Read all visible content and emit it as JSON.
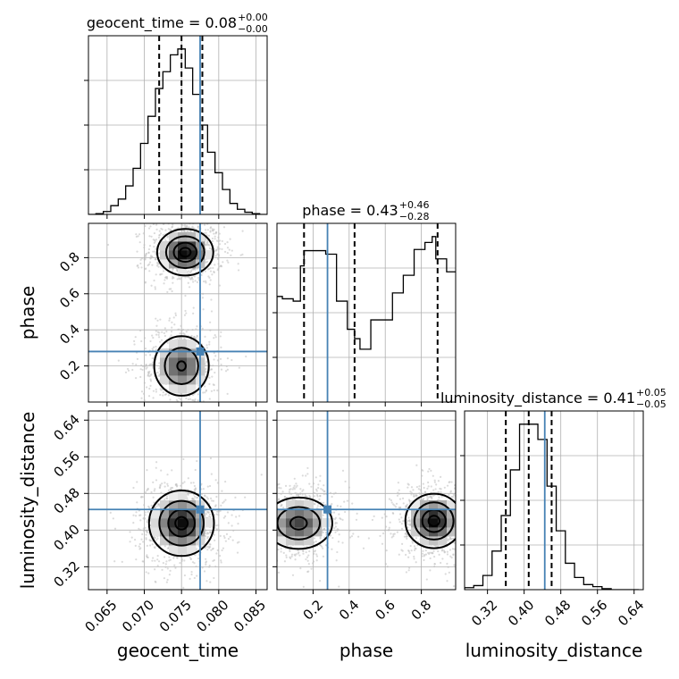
{
  "chart_data": {
    "type": "corner",
    "parameters": [
      "geocent_time",
      "phase",
      "luminosity_distance"
    ],
    "truths": {
      "geocent_time": 0.0775,
      "phase": 0.28,
      "luminosity_distance": 0.445
    },
    "ranges": {
      "geocent_time": [
        0.0625,
        0.0865
      ],
      "phase": [
        0.0,
        0.99
      ],
      "luminosity_distance": [
        0.27,
        0.66
      ]
    },
    "ticks": {
      "geocent_time": [
        0.065,
        0.07,
        0.075,
        0.08,
        0.085
      ],
      "phase": [
        0.2,
        0.4,
        0.6,
        0.8
      ],
      "luminosity_distance": [
        0.32,
        0.4,
        0.48,
        0.56,
        0.64
      ]
    },
    "tick_labels": {
      "geocent_time": [
        "0.065",
        "0.070",
        "0.075",
        "0.080",
        "0.085"
      ],
      "phase": [
        "0.2",
        "0.4",
        "0.6",
        "0.8"
      ],
      "luminosity_distance": [
        "0.32",
        "0.40",
        "0.48",
        "0.56",
        "0.64"
      ]
    },
    "titles": [
      {
        "param": "geocent_time",
        "text": "geocent_time = 0.08",
        "plus": "+0.00",
        "minus": "−0.00"
      },
      {
        "param": "phase",
        "text": "phase = 0.43",
        "plus": "+0.46",
        "minus": "−0.28"
      },
      {
        "param": "luminosity_distance",
        "text": "luminosity_distance = 0.41",
        "plus": "+0.05",
        "minus": "−0.05"
      }
    ],
    "quantiles": {
      "geocent_time": [
        0.072,
        0.075,
        0.0778
      ],
      "phase": [
        0.15,
        0.43,
        0.89
      ],
      "luminosity_distance": [
        0.36,
        0.41,
        0.46
      ]
    },
    "marginals": {
      "geocent_time": {
        "edges": [
          0.0625,
          0.0635,
          0.0645,
          0.0655,
          0.0665,
          0.0675,
          0.0685,
          0.0695,
          0.0705,
          0.0715,
          0.0725,
          0.0735,
          0.0745,
          0.0755,
          0.0765,
          0.0775,
          0.0785,
          0.0795,
          0.0805,
          0.0815,
          0.0825,
          0.0835,
          0.0845,
          0.0855,
          0.0865
        ],
        "counts": [
          0,
          1,
          4,
          12,
          21,
          39,
          63,
          97,
          134,
          172,
          195,
          218,
          226,
          200,
          164,
          122,
          85,
          57,
          34,
          15,
          7,
          3,
          1,
          0
        ]
      },
      "phase": {
        "edges": [
          0.0,
          0.03,
          0.09,
          0.13,
          0.15,
          0.21,
          0.27,
          0.33,
          0.39,
          0.43,
          0.46,
          0.52,
          0.58,
          0.64,
          0.7,
          0.76,
          0.82,
          0.86,
          0.88,
          0.94,
          0.99
        ],
        "counts": [
          90,
          88,
          86,
          116,
          129,
          129,
          126,
          86,
          62,
          54,
          45,
          70,
          70,
          93,
          108,
          130,
          136,
          141,
          122,
          111
        ]
      },
      "luminosity_distance": {
        "edges": [
          0.27,
          0.29,
          0.31,
          0.33,
          0.35,
          0.37,
          0.39,
          0.41,
          0.43,
          0.45,
          0.47,
          0.49,
          0.51,
          0.53,
          0.55,
          0.57,
          0.59,
          0.61,
          0.63,
          0.65
        ],
        "counts": [
          2,
          4,
          14,
          38,
          73,
          118,
          163,
          163,
          148,
          102,
          58,
          26,
          12,
          5,
          3,
          1,
          0,
          0,
          0
        ]
      }
    },
    "density_2d": [
      {
        "x": "geocent_time",
        "y": "phase",
        "peaks": [
          {
            "x": 0.0755,
            "y": 0.83,
            "sx": 0.0019,
            "sy": 0.065,
            "w": 1.0
          },
          {
            "x": 0.075,
            "y": 0.2,
            "sx": 0.002,
            "sy": 0.09,
            "w": 0.75
          }
        ]
      },
      {
        "x": "geocent_time",
        "y": "luminosity_distance",
        "peaks": [
          {
            "x": 0.075,
            "y": 0.415,
            "sx": 0.0022,
            "sy": 0.036,
            "w": 1.0
          }
        ]
      },
      {
        "x": "phase",
        "y": "luminosity_distance",
        "peaks": [
          {
            "x": 0.12,
            "y": 0.415,
            "sx": 0.1,
            "sy": 0.03,
            "w": 0.8
          },
          {
            "x": 0.87,
            "y": 0.42,
            "sx": 0.08,
            "sy": 0.03,
            "w": 1.0
          }
        ]
      }
    ],
    "colors": {
      "truth": "#4682b4",
      "hist": "#000000",
      "grid": "#b0b0b0"
    },
    "grid": true
  }
}
